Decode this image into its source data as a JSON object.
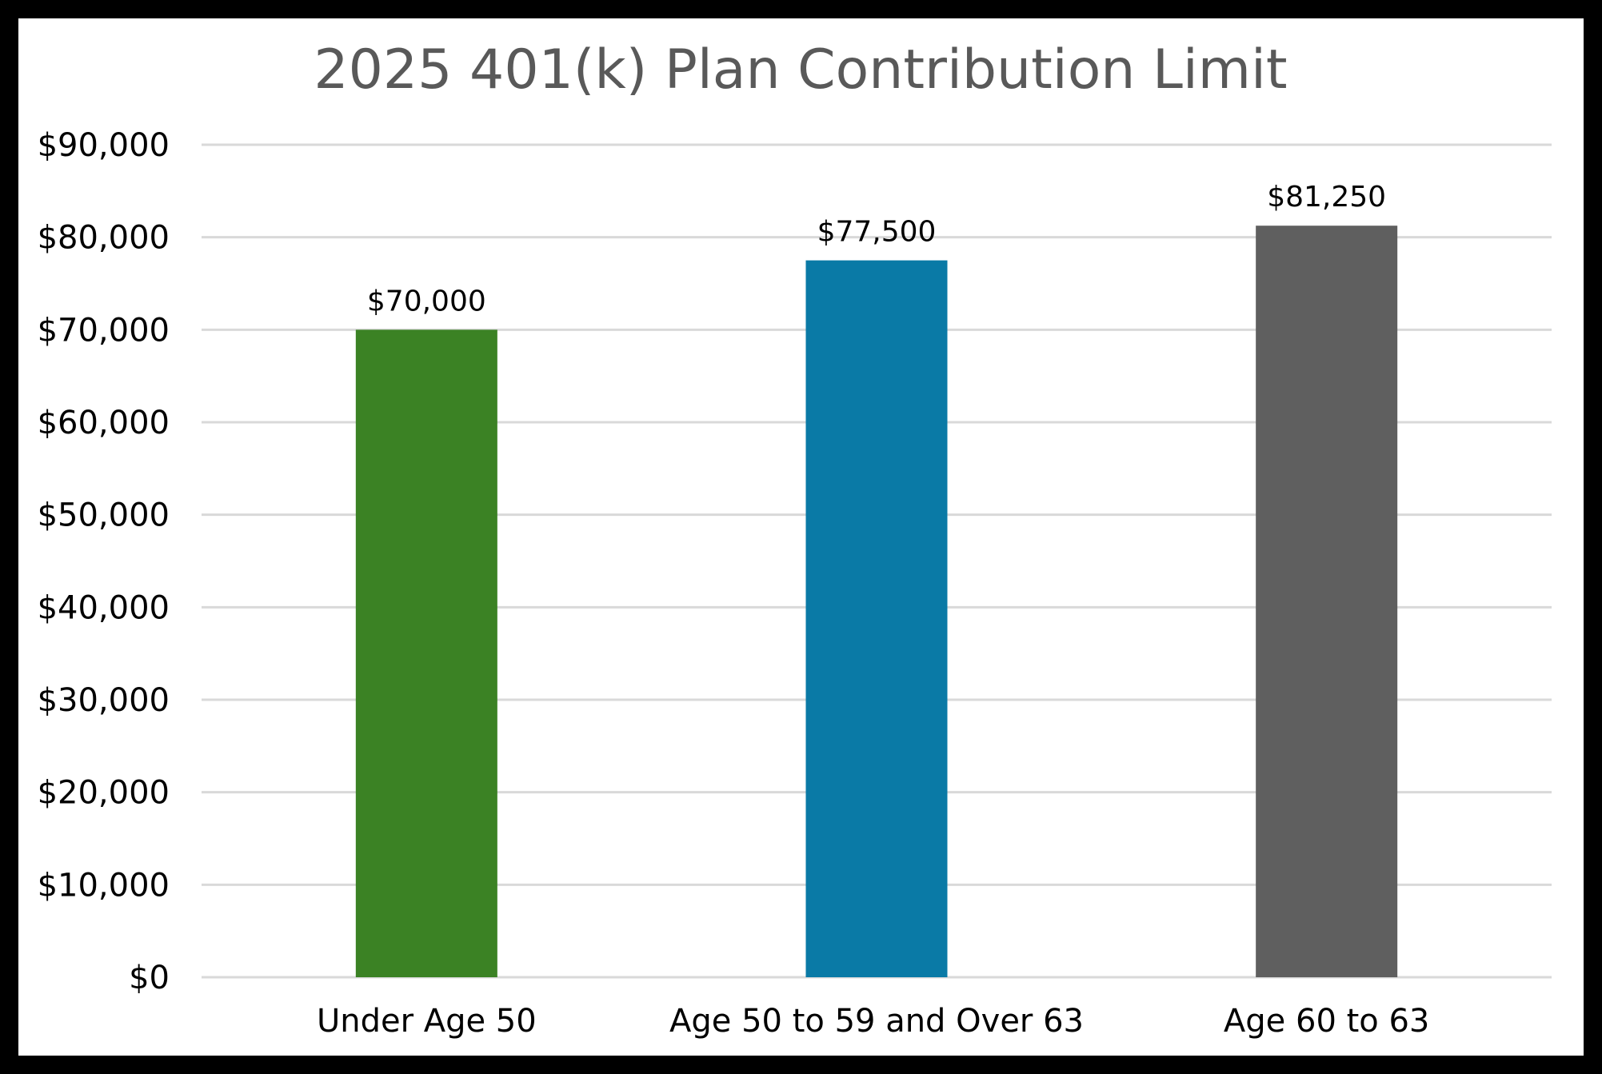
{
  "chart_data": {
    "type": "bar",
    "title": "2025 401(k) Plan Contribution Limit",
    "xlabel": "",
    "ylabel": "",
    "categories": [
      "Under Age 50",
      "Age 50 to 59 and Over 63",
      "Age 60 to 63"
    ],
    "values": [
      70000,
      77500,
      81250
    ],
    "value_labels": [
      "$70,000",
      "$77,500",
      "$81,250"
    ],
    "colors": [
      "#3b8224",
      "#0a7aa6",
      "#5f5f5f"
    ],
    "ylim": [
      0,
      90000
    ],
    "y_ticks": [
      0,
      10000,
      20000,
      30000,
      40000,
      50000,
      60000,
      70000,
      80000,
      90000
    ],
    "y_tick_labels": [
      "$0",
      "$10,000",
      "$20,000",
      "$30,000",
      "$40,000",
      "$50,000",
      "$60,000",
      "$70,000",
      "$80,000",
      "$90,000"
    ],
    "grid": true,
    "legend": "none"
  }
}
